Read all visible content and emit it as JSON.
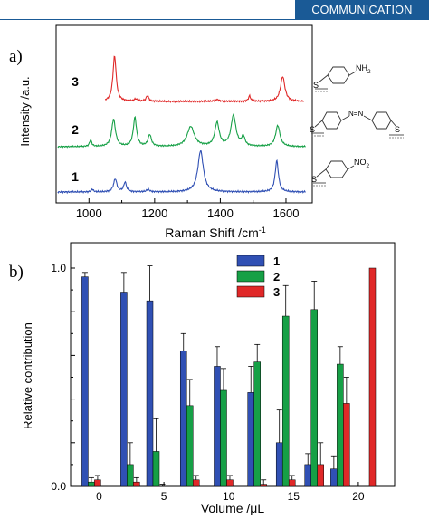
{
  "header": {
    "section_label": "COMMUNICATION"
  },
  "colors": {
    "series_1": "#3050b4",
    "series_2": "#16a046",
    "series_3": "#e02828",
    "header_bg": "#1a5a96"
  },
  "structures": {
    "s3": {
      "substituent": "NH",
      "subscript": "2",
      "anchor": "S"
    },
    "s2": {
      "left_anchor": "S",
      "right_anchor": "S",
      "bridge": "N=N"
    },
    "s1": {
      "substituent": "NO",
      "subscript": "2",
      "anchor": "S"
    }
  },
  "chart_data": [
    {
      "panel_label": "a)",
      "type": "line",
      "xlabel_main": "Raman Shift /cm",
      "xlabel_sup": "-1",
      "ylabel": "Intensity /a.u.",
      "xlim": [
        900,
        1680
      ],
      "x_ticks": [
        1000,
        1200,
        1400,
        1600
      ],
      "series": [
        {
          "name": "3",
          "color": "#e02828",
          "peaks": [
            [
              1078,
              1.0,
              6
            ],
            [
              1143,
              0.05,
              6
            ],
            [
              1178,
              0.12,
              5
            ],
            [
              1390,
              0.04,
              8
            ],
            [
              1489,
              0.12,
              4
            ],
            [
              1590,
              0.55,
              8
            ]
          ]
        },
        {
          "name": "2",
          "color": "#16a046",
          "peaks": [
            [
              1005,
              0.18,
              4
            ],
            [
              1075,
              0.75,
              7
            ],
            [
              1140,
              0.8,
              6
            ],
            [
              1185,
              0.32,
              6
            ],
            [
              1310,
              0.55,
              13
            ],
            [
              1390,
              0.65,
              8
            ],
            [
              1440,
              0.85,
              9
            ],
            [
              1470,
              0.25,
              6
            ],
            [
              1575,
              0.58,
              8
            ]
          ]
        },
        {
          "name": "1",
          "color": "#3050b4",
          "peaks": [
            [
              1010,
              0.06,
              4
            ],
            [
              1080,
              0.3,
              6
            ],
            [
              1110,
              0.22,
              5
            ],
            [
              1180,
              0.06,
              5
            ],
            [
              1340,
              0.95,
              10
            ],
            [
              1572,
              0.72,
              6
            ]
          ]
        }
      ]
    },
    {
      "panel_label": "b)",
      "type": "bar",
      "xlabel": "Volume /μL",
      "ylabel": "Relative contribution",
      "ylim": [
        0,
        1
      ],
      "y_ticks": [
        "0.0",
        "1.0"
      ],
      "x_ticks": [
        "0",
        "5",
        "10",
        "15",
        "20"
      ],
      "x_tick_values": [
        0,
        5,
        10,
        15,
        20
      ],
      "x": [
        -0.6,
        2.4,
        4.4,
        7.0,
        9.6,
        12.2,
        14.4,
        16.6,
        18.6,
        20.6
      ],
      "xlim": [
        -2.2,
        22.8
      ],
      "series": [
        {
          "name": "1",
          "color": "#3050b4",
          "values": [
            0.96,
            0.89,
            0.85,
            0.62,
            0.55,
            0.43,
            0.2,
            0.1,
            0.08,
            0.0
          ],
          "errors": [
            0.02,
            0.09,
            0.16,
            0.08,
            0.09,
            0.12,
            0.15,
            0.05,
            0.06,
            0.0
          ]
        },
        {
          "name": "2",
          "color": "#16a046",
          "values": [
            0.02,
            0.1,
            0.16,
            0.37,
            0.44,
            0.57,
            0.78,
            0.81,
            0.56,
            0.0
          ],
          "errors": [
            0.02,
            0.1,
            0.15,
            0.12,
            0.1,
            0.08,
            0.14,
            0.13,
            0.08,
            0.0
          ]
        },
        {
          "name": "3",
          "color": "#e02828",
          "values": [
            0.03,
            0.02,
            0.0,
            0.03,
            0.03,
            0.01,
            0.03,
            0.1,
            0.38,
            1.0
          ],
          "errors": [
            0.02,
            0.02,
            0.01,
            0.02,
            0.02,
            0.02,
            0.02,
            0.1,
            0.12,
            0.0
          ]
        }
      ]
    }
  ]
}
